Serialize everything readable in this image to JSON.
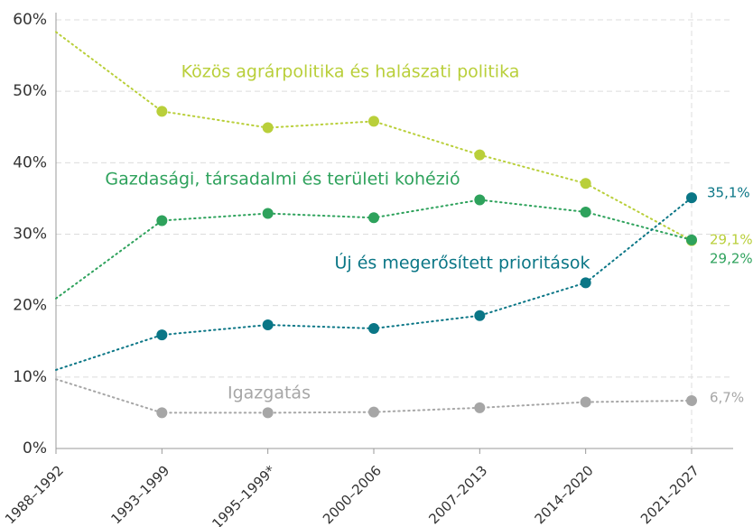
{
  "chart_data": {
    "type": "line",
    "categories": [
      "1988–1992",
      "1993–1999",
      "1995–1999*",
      "2000–2006",
      "2007–2013",
      "2014–2020",
      "2021–2027"
    ],
    "series": [
      {
        "name": "Közös agrárpolitika és halászati politika",
        "color": "#b9cf3a",
        "values": [
          58.3,
          47.2,
          44.9,
          45.8,
          41.1,
          37.1,
          29.1
        ],
        "value_labels": [
          null,
          null,
          null,
          null,
          null,
          null,
          "29,1%"
        ]
      },
      {
        "name": "Gazdasági, társadalmi és területi kohézió",
        "color": "#2ea25c",
        "values": [
          21.0,
          31.9,
          32.9,
          32.3,
          34.8,
          33.1,
          29.2
        ],
        "value_labels": [
          null,
          null,
          null,
          null,
          null,
          null,
          "29,2%"
        ]
      },
      {
        "name": "Új és megerősített prioritások",
        "color": "#0a7686",
        "values": [
          11.0,
          15.9,
          17.3,
          16.8,
          18.6,
          23.2,
          35.1
        ],
        "value_labels": [
          null,
          null,
          null,
          null,
          null,
          null,
          "35,1%"
        ]
      },
      {
        "name": "Igazgatás",
        "color": "#a6a6a6",
        "values": [
          9.7,
          5.0,
          5.0,
          5.1,
          5.7,
          6.5,
          6.7
        ],
        "value_labels": [
          null,
          null,
          null,
          null,
          null,
          null,
          "6,7%"
        ]
      }
    ],
    "ylim": [
      0,
      60
    ],
    "yticks": [
      {
        "value": 0,
        "label": "0%"
      },
      {
        "value": 10,
        "label": "10%"
      },
      {
        "value": 20,
        "label": "20%"
      },
      {
        "value": 30,
        "label": "30%"
      },
      {
        "value": 40,
        "label": "40%"
      },
      {
        "value": 50,
        "label": "50%"
      },
      {
        "value": 60,
        "label": "60%"
      }
    ],
    "grid": true
  }
}
